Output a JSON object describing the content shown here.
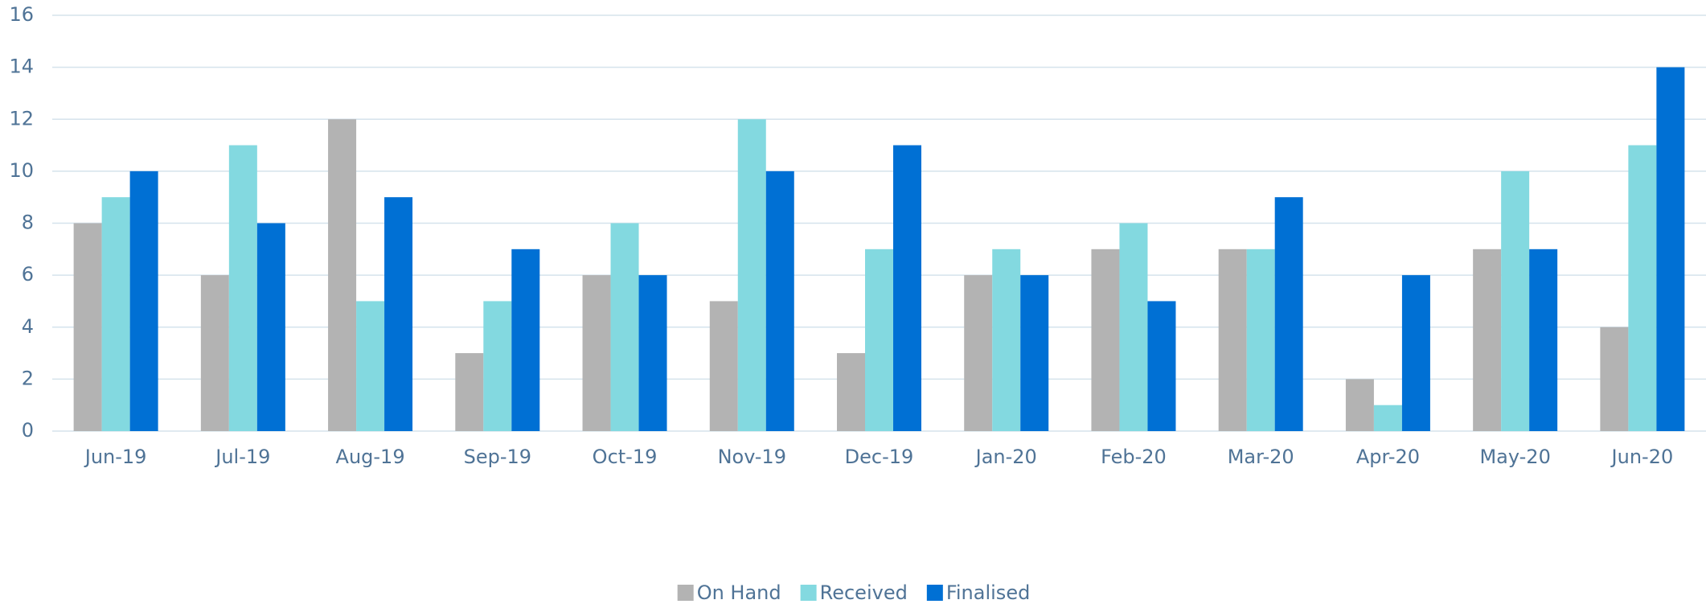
{
  "chart_data": {
    "type": "bar",
    "categories": [
      "Jun-19",
      "Jul-19",
      "Aug-19",
      "Sep-19",
      "Oct-19",
      "Nov-19",
      "Dec-19",
      "Jan-20",
      "Feb-20",
      "Mar-20",
      "Apr-20",
      "May-20",
      "Jun-20"
    ],
    "series": [
      {
        "name": "On Hand",
        "color": "#b3b3b3",
        "values": [
          8,
          6,
          12,
          3,
          6,
          5,
          3,
          6,
          7,
          7,
          2,
          7,
          4
        ]
      },
      {
        "name": "Received",
        "color": "#83d9e0",
        "values": [
          9,
          11,
          5,
          5,
          8,
          12,
          7,
          7,
          8,
          7,
          1,
          10,
          11
        ]
      },
      {
        "name": "Finalised",
        "color": "#0070d4",
        "values": [
          10,
          8,
          9,
          7,
          6,
          10,
          11,
          6,
          5,
          9,
          6,
          7,
          14
        ]
      }
    ],
    "ylim": [
      0,
      16
    ],
    "yticks": [
      0,
      2,
      4,
      6,
      8,
      10,
      12,
      14,
      16
    ],
    "grid": true,
    "legend": "bottom"
  }
}
